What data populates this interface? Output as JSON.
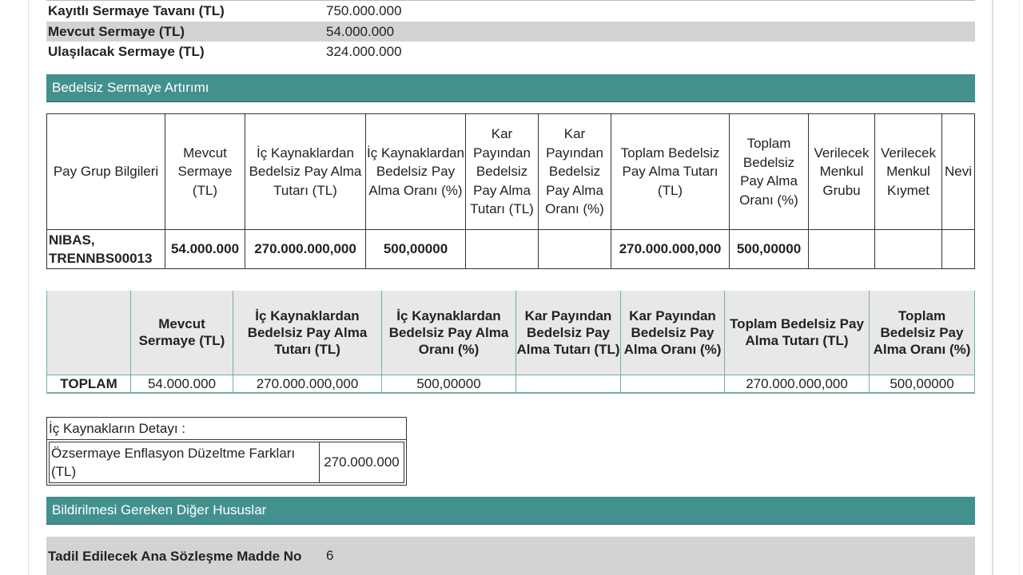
{
  "summary": [
    {
      "label": "Kayıtlı Sermaye Tavanı (TL)",
      "value": "750.000.000"
    },
    {
      "label": "Mevcut Sermaye (TL)",
      "value": "54.000.000"
    },
    {
      "label": "Ulaşılacak Sermaye (TL)",
      "value": "324.000.000"
    }
  ],
  "section1": "Bedelsiz Sermaye Artırımı",
  "group_table": {
    "headers": [
      "Pay Grup Bilgileri",
      "Mevcut Sermaye (TL)",
      "İç Kaynaklardan Bedelsiz Pay Alma Tutarı (TL)",
      "İç Kaynaklardan Bedelsiz Pay Alma Oranı (%)",
      "Kar Payından Bedelsiz Pay Alma Tutarı (TL)",
      "Kar Payından Bedelsiz Pay Alma Oranı (%)",
      "Toplam Bedelsiz Pay Alma Tutarı (TL)",
      "Toplam Bedelsiz Pay Alma Oranı (%)",
      "Verilecek Menkul Grubu",
      "Verilecek Menkul Kıymet",
      "Nevi"
    ],
    "row": [
      "NIBAS, TRENNBS00013",
      "54.000.000",
      "270.000.000,000",
      "500,00000",
      "",
      "",
      "270.000.000,000",
      "500,00000",
      "",
      "",
      ""
    ]
  },
  "total_table": {
    "headers": [
      "",
      "Mevcut Sermaye (TL)",
      "İç Kaynaklardan Bedelsiz Pay Alma Tutarı (TL)",
      "İç Kaynaklardan Bedelsiz Pay Alma Oranı (%)",
      "Kar Payından Bedelsiz Pay Alma Tutarı (TL)",
      "Kar Payından Bedelsiz Pay Alma Oranı (%)",
      "Toplam Bedelsiz Pay Alma Tutarı (TL)",
      "Toplam Bedelsiz Pay Alma Oranı (%)"
    ],
    "row": [
      "TOPLAM",
      "54.000.000",
      "270.000.000,000",
      "500,00000",
      "",
      "",
      "270.000.000,000",
      "500,00000"
    ]
  },
  "sources": {
    "title": "İç Kaynakların Detayı :",
    "label": "Özsermaye Enflasyon Düzeltme Farkları (TL)",
    "value": "270.000.000"
  },
  "section2": "Bildirilmesi Gereken Diğer Hususlar",
  "amendment": {
    "label": "Tadil Edilecek Ana Sözleşme Madde No",
    "value": "6"
  }
}
